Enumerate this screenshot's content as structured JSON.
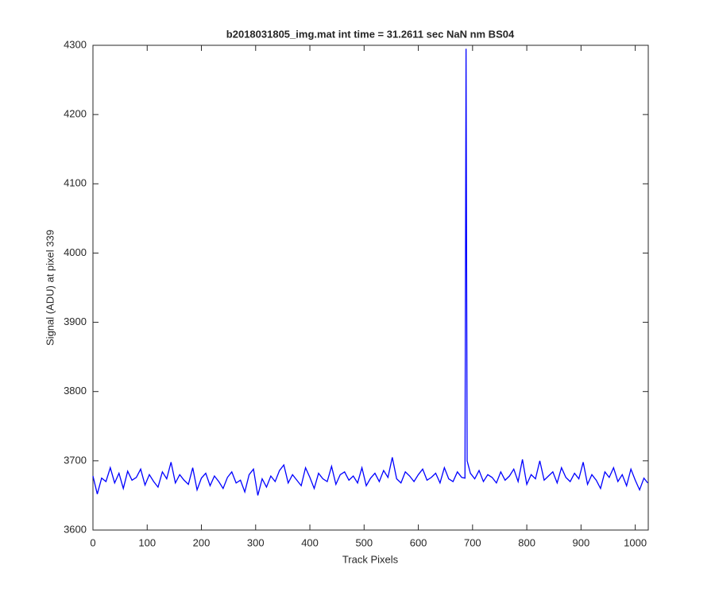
{
  "chart_data": {
    "type": "line",
    "title": "b2018031805_img.mat int time = 31.2611 sec  NaN nm BS04",
    "x_label": "Track Pixels",
    "y_label": "Signal (ADU) at pixel 339",
    "xlim": [
      0,
      1024
    ],
    "ylim": [
      3600,
      4300
    ],
    "xticks": [
      0,
      100,
      200,
      300,
      400,
      500,
      600,
      700,
      800,
      900,
      1000
    ],
    "yticks": [
      3600,
      3700,
      3800,
      3900,
      4000,
      4100,
      4200,
      4300
    ],
    "x": [
      0,
      8,
      16,
      24,
      32,
      40,
      48,
      56,
      64,
      72,
      80,
      88,
      96,
      104,
      112,
      120,
      128,
      136,
      144,
      152,
      160,
      168,
      176,
      184,
      192,
      200,
      208,
      216,
      224,
      232,
      240,
      248,
      256,
      264,
      272,
      280,
      288,
      296,
      304,
      312,
      320,
      328,
      336,
      344,
      352,
      360,
      368,
      376,
      384,
      392,
      400,
      408,
      416,
      424,
      432,
      440,
      448,
      456,
      464,
      472,
      480,
      488,
      496,
      504,
      512,
      520,
      528,
      536,
      544,
      552,
      560,
      568,
      576,
      584,
      592,
      600,
      608,
      616,
      624,
      632,
      640,
      648,
      656,
      664,
      672,
      680,
      686,
      688,
      690,
      696,
      704,
      712,
      720,
      728,
      736,
      744,
      752,
      760,
      768,
      776,
      784,
      792,
      800,
      808,
      816,
      824,
      832,
      840,
      848,
      856,
      864,
      872,
      880,
      888,
      896,
      904,
      912,
      920,
      928,
      936,
      944,
      952,
      960,
      968,
      976,
      984,
      992,
      1000,
      1008,
      1016,
      1023
    ],
    "series": [
      {
        "color": "#0000ff",
        "values": [
          3678,
          3652,
          3675,
          3670,
          3690,
          3668,
          3682,
          3660,
          3685,
          3672,
          3676,
          3688,
          3665,
          3680,
          3670,
          3662,
          3684,
          3674,
          3698,
          3668,
          3680,
          3672,
          3666,
          3690,
          3658,
          3675,
          3682,
          3664,
          3678,
          3670,
          3660,
          3676,
          3684,
          3668,
          3672,
          3655,
          3680,
          3688,
          3650,
          3674,
          3662,
          3678,
          3670,
          3686,
          3694,
          3668,
          3680,
          3672,
          3664,
          3690,
          3676,
          3660,
          3682,
          3674,
          3670,
          3692,
          3666,
          3680,
          3684,
          3672,
          3678,
          3668,
          3690,
          3664,
          3675,
          3682,
          3670,
          3686,
          3676,
          3705,
          3674,
          3668,
          3684,
          3678,
          3670,
          3680,
          3688,
          3672,
          3676,
          3682,
          3668,
          3690,
          3674,
          3670,
          3684,
          3676,
          3675,
          4295,
          3700,
          3682,
          3674,
          3686,
          3670,
          3680,
          3676,
          3668,
          3684,
          3672,
          3678,
          3688,
          3670,
          3702,
          3666,
          3680,
          3674,
          3700,
          3672,
          3678,
          3684,
          3668,
          3690,
          3676,
          3670,
          3682,
          3674,
          3698,
          3666,
          3680,
          3672,
          3660,
          3684,
          3676,
          3690,
          3670,
          3680,
          3664,
          3688,
          3672,
          3658,
          3675,
          3668
        ]
      }
    ]
  }
}
